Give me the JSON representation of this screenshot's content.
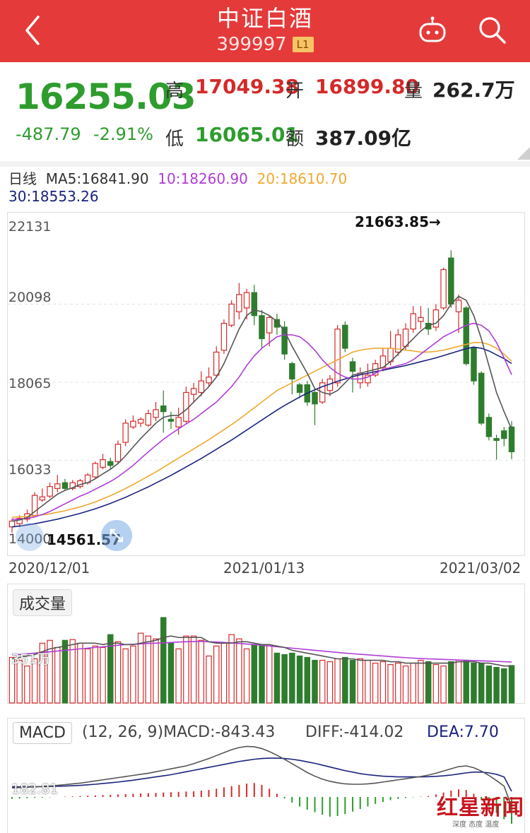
{
  "header": {
    "title": "中证白酒",
    "code": "399997",
    "level_badge": "L1"
  },
  "quote": {
    "price": "16255.03",
    "change": "-487.79",
    "change_pct": "-2.91%",
    "high_label": "高",
    "high": "17049.38",
    "open_label": "开",
    "open": "16899.80",
    "volume_label": "量",
    "volume": "262.7万",
    "low_label": "低",
    "low": "16065.01",
    "amount_label": "额",
    "amount": "387.09亿"
  },
  "ma_legend": {
    "period": "日线",
    "ma5": "MA5:16841.90",
    "ma10": "10:18260.90",
    "ma20": "20:18610.70",
    "ma30": "30:18553.26"
  },
  "colors": {
    "header_bg": "#e53a3a",
    "up": "#d42a2a",
    "down": "#2e7d2e",
    "ma5": "#555555",
    "ma10": "#b03cd8",
    "ma20": "#f0a830",
    "ma30": "#1a237e"
  },
  "icons": {
    "back": "chevron-left-icon",
    "robot": "robot-icon",
    "search": "search-icon",
    "expand": "expand-icon"
  },
  "chart_data": [
    {
      "type": "candlestick",
      "y_tick_labels": [
        "22131",
        "20098",
        "18065",
        "16033",
        "14000"
      ],
      "ylim": [
        14000,
        22131
      ],
      "x_tick_labels": [
        "2020/12/01",
        "2021/01/13",
        "2021/03/02"
      ],
      "annotations": {
        "max_label": "21663.85→",
        "min_label": "14561.57"
      },
      "candles": [
        {
          "o": 14300,
          "c": 14450,
          "h": 14520,
          "l": 14150
        },
        {
          "o": 14380,
          "c": 14520,
          "h": 14600,
          "l": 14300
        },
        {
          "o": 14500,
          "c": 14640,
          "h": 14750,
          "l": 14430
        },
        {
          "o": 14600,
          "c": 15120,
          "h": 15200,
          "l": 14560
        },
        {
          "o": 15000,
          "c": 15080,
          "h": 15300,
          "l": 14950
        },
        {
          "o": 15100,
          "c": 15350,
          "h": 15450,
          "l": 15050
        },
        {
          "o": 15300,
          "c": 15420,
          "h": 15650,
          "l": 15200
        },
        {
          "o": 15450,
          "c": 15300,
          "h": 15550,
          "l": 15250
        },
        {
          "o": 15300,
          "c": 15450,
          "h": 15520,
          "l": 15250
        },
        {
          "o": 15350,
          "c": 15500,
          "h": 15550,
          "l": 15300
        },
        {
          "o": 15450,
          "c": 15650,
          "h": 15700,
          "l": 15400
        },
        {
          "o": 15600,
          "c": 15950,
          "h": 16000,
          "l": 15550
        },
        {
          "o": 15850,
          "c": 16050,
          "h": 16200,
          "l": 15800
        },
        {
          "o": 16000,
          "c": 15900,
          "h": 16100,
          "l": 15800
        },
        {
          "o": 16000,
          "c": 16450,
          "h": 16550,
          "l": 15950
        },
        {
          "o": 16500,
          "c": 17000,
          "h": 17100,
          "l": 16400
        },
        {
          "o": 16900,
          "c": 17050,
          "h": 17200,
          "l": 16850
        },
        {
          "o": 17000,
          "c": 17100,
          "h": 17150,
          "l": 16900
        },
        {
          "o": 16950,
          "c": 17250,
          "h": 17350,
          "l": 16900
        },
        {
          "o": 17150,
          "c": 17350,
          "h": 17550,
          "l": 17050
        },
        {
          "o": 17450,
          "c": 17300,
          "h": 17850,
          "l": 16750
        },
        {
          "o": 17100,
          "c": 17050,
          "h": 17300,
          "l": 16850
        },
        {
          "o": 16900,
          "c": 17150,
          "h": 17400,
          "l": 16700
        },
        {
          "o": 17050,
          "c": 17800,
          "h": 17950,
          "l": 17000
        },
        {
          "o": 17750,
          "c": 17900,
          "h": 18050,
          "l": 17550
        },
        {
          "o": 17800,
          "c": 18100,
          "h": 18350,
          "l": 17700
        },
        {
          "o": 18050,
          "c": 18200,
          "h": 18450,
          "l": 17950
        },
        {
          "o": 18250,
          "c": 18850,
          "h": 19000,
          "l": 18200
        },
        {
          "o": 18900,
          "c": 19600,
          "h": 19700,
          "l": 18800
        },
        {
          "o": 19550,
          "c": 20100,
          "h": 20200,
          "l": 19500
        },
        {
          "o": 19900,
          "c": 20350,
          "h": 20650,
          "l": 19700
        },
        {
          "o": 20000,
          "c": 20400,
          "h": 20500,
          "l": 19700
        },
        {
          "o": 20400,
          "c": 19800,
          "h": 20600,
          "l": 19550
        },
        {
          "o": 19800,
          "c": 19200,
          "h": 19950,
          "l": 18950
        },
        {
          "o": 19350,
          "c": 19750,
          "h": 19800,
          "l": 19000
        },
        {
          "o": 19700,
          "c": 19500,
          "h": 19850,
          "l": 19300
        },
        {
          "o": 19500,
          "c": 18800,
          "h": 19650,
          "l": 18650
        },
        {
          "o": 18550,
          "c": 18150,
          "h": 18600,
          "l": 17750
        },
        {
          "o": 18000,
          "c": 17800,
          "h": 18050,
          "l": 17650
        },
        {
          "o": 18000,
          "c": 17550,
          "h": 18100,
          "l": 17450
        },
        {
          "o": 17800,
          "c": 17500,
          "h": 17850,
          "l": 16950
        },
        {
          "o": 17550,
          "c": 18050,
          "h": 18150,
          "l": 17500
        },
        {
          "o": 17850,
          "c": 18150,
          "h": 18250,
          "l": 17700
        },
        {
          "o": 18050,
          "c": 19450,
          "h": 19550,
          "l": 17950
        },
        {
          "o": 19550,
          "c": 18950,
          "h": 19650,
          "l": 18850
        },
        {
          "o": 18600,
          "c": 18350,
          "h": 18700,
          "l": 17800
        },
        {
          "o": 18050,
          "c": 18300,
          "h": 18450,
          "l": 17900
        },
        {
          "o": 18050,
          "c": 18250,
          "h": 18550,
          "l": 17950
        },
        {
          "o": 18250,
          "c": 18550,
          "h": 18650,
          "l": 18200
        },
        {
          "o": 18450,
          "c": 18750,
          "h": 18950,
          "l": 18350
        },
        {
          "o": 18600,
          "c": 18950,
          "h": 19400,
          "l": 18500
        },
        {
          "o": 18850,
          "c": 19300,
          "h": 19450,
          "l": 18750
        },
        {
          "o": 19000,
          "c": 19450,
          "h": 19600,
          "l": 18900
        },
        {
          "o": 19450,
          "c": 19850,
          "h": 20050,
          "l": 19350
        },
        {
          "o": 19650,
          "c": 19750,
          "h": 20050,
          "l": 19450
        },
        {
          "o": 19600,
          "c": 19450,
          "h": 20000,
          "l": 19300
        },
        {
          "o": 19500,
          "c": 19950,
          "h": 20100,
          "l": 19400
        },
        {
          "o": 20000,
          "c": 21000,
          "h": 21050,
          "l": 19950
        },
        {
          "o": 21300,
          "c": 20100,
          "h": 21500,
          "l": 20000
        },
        {
          "o": 19900,
          "c": 20200,
          "h": 20350,
          "l": 19350
        },
        {
          "o": 20000,
          "c": 18550,
          "h": 20050,
          "l": 18500
        },
        {
          "o": 18950,
          "c": 18100,
          "h": 19000,
          "l": 18000
        },
        {
          "o": 18300,
          "c": 17000,
          "h": 18350,
          "l": 16950
        },
        {
          "o": 17150,
          "c": 16650,
          "h": 17250,
          "l": 16550
        },
        {
          "o": 16600,
          "c": 16550,
          "h": 16700,
          "l": 16050
        },
        {
          "o": 16800,
          "c": 16600,
          "h": 16900,
          "l": 16400
        },
        {
          "o": 16900,
          "c": 16255,
          "h": 17049,
          "l": 16065
        }
      ],
      "ma5": [
        14450,
        14480,
        14540,
        14700,
        14850,
        15000,
        15150,
        15250,
        15320,
        15400,
        15450,
        15550,
        15680,
        15800,
        15950,
        16150,
        16380,
        16600,
        16800,
        17000,
        17150,
        17200,
        17200,
        17350,
        17550,
        17750,
        17950,
        18200,
        18550,
        19000,
        19450,
        19800,
        19950,
        19900,
        19800,
        19650,
        19400,
        19000,
        18650,
        18300,
        17900,
        17800,
        17750,
        17850,
        18050,
        18250,
        18300,
        18350,
        18400,
        18450,
        18600,
        18800,
        19000,
        19200,
        19400,
        19550,
        19600,
        19800,
        20100,
        20300,
        20200,
        19800,
        19200,
        18500,
        17800,
        17300,
        16840
      ],
      "ma10": [
        14500,
        14500,
        14520,
        14560,
        14620,
        14700,
        14800,
        14900,
        15000,
        15100,
        15180,
        15280,
        15380,
        15480,
        15600,
        15750,
        15900,
        16080,
        16250,
        16420,
        16580,
        16720,
        16850,
        16980,
        17100,
        17250,
        17400,
        17550,
        17750,
        17950,
        18200,
        18500,
        18750,
        18950,
        19100,
        19250,
        19300,
        19300,
        19250,
        19100,
        18900,
        18650,
        18450,
        18300,
        18200,
        18150,
        18150,
        18200,
        18300,
        18400,
        18450,
        18500,
        18550,
        18650,
        18800,
        18950,
        19100,
        19250,
        19350,
        19450,
        19550,
        19600,
        19550,
        19400,
        19100,
        18700,
        18261
      ],
      "ma20": [
        14550,
        14560,
        14570,
        14590,
        14610,
        14640,
        14680,
        14720,
        14770,
        14820,
        14880,
        14950,
        15030,
        15110,
        15200,
        15300,
        15400,
        15510,
        15620,
        15730,
        15850,
        15970,
        16090,
        16210,
        16330,
        16450,
        16570,
        16700,
        16830,
        16960,
        17100,
        17250,
        17400,
        17550,
        17700,
        17850,
        17950,
        18050,
        18150,
        18250,
        18350,
        18450,
        18550,
        18650,
        18750,
        18850,
        18900,
        18930,
        18950,
        18950,
        18950,
        18930,
        18900,
        18880,
        18850,
        18850,
        18870,
        18900,
        18950,
        19000,
        19050,
        19100,
        19100,
        19050,
        18950,
        18800,
        18611
      ],
      "ma30": [
        14300,
        14320,
        14350,
        14380,
        14420,
        14460,
        14500,
        14550,
        14600,
        14650,
        14710,
        14770,
        14840,
        14910,
        14990,
        15070,
        15160,
        15250,
        15340,
        15440,
        15540,
        15640,
        15750,
        15860,
        15970,
        16080,
        16200,
        16320,
        16440,
        16560,
        16690,
        16820,
        16950,
        17080,
        17210,
        17340,
        17460,
        17570,
        17680,
        17780,
        17870,
        17950,
        18020,
        18090,
        18150,
        18210,
        18260,
        18300,
        18340,
        18380,
        18420,
        18460,
        18500,
        18550,
        18600,
        18650,
        18700,
        18760,
        18820,
        18880,
        18940,
        18980,
        18950,
        18880,
        18780,
        18680,
        18553
      ]
    },
    {
      "type": "bar",
      "title": "成交量",
      "y_tick_labels": [
        "351万"
      ],
      "volumes": [
        320,
        300,
        260,
        310,
        420,
        440,
        390,
        440,
        445,
        420,
        380,
        400,
        390,
        480,
        430,
        380,
        400,
        490,
        470,
        450,
        600,
        420,
        380,
        470,
        470,
        440,
        330,
        400,
        420,
        480,
        450,
        380,
        410,
        400,
        400,
        350,
        340,
        350,
        330,
        320,
        300,
        300,
        290,
        310,
        320,
        300,
        310,
        300,
        280,
        290,
        270,
        280,
        260,
        280,
        300,
        290,
        270,
        260,
        290,
        300,
        300,
        280,
        280,
        260,
        250,
        240,
        263
      ],
      "vol_ma5": [
        310,
        320,
        330,
        340,
        360,
        380,
        390,
        400,
        410,
        420,
        420,
        420,
        410,
        420,
        420,
        410,
        410,
        420,
        430,
        440,
        460,
        470,
        460,
        460,
        460,
        460,
        430,
        420,
        420,
        420,
        430,
        430,
        420,
        410,
        410,
        400,
        390,
        370,
        360,
        350,
        340,
        330,
        320,
        310,
        310,
        310,
        300,
        300,
        300,
        300,
        290,
        290,
        280,
        280,
        280,
        280,
        280,
        280,
        280,
        290,
        290,
        290,
        280,
        280,
        270,
        260,
        260
      ],
      "vol_ma10": [
        340,
        340,
        345,
        350,
        355,
        360,
        365,
        370,
        375,
        380,
        385,
        390,
        395,
        400,
        405,
        410,
        412,
        415,
        418,
        420,
        422,
        425,
        428,
        430,
        432,
        432,
        430,
        428,
        425,
        422,
        418,
        414,
        410,
        405,
        400,
        395,
        390,
        385,
        380,
        375,
        370,
        365,
        360,
        355,
        350,
        346,
        342,
        338,
        334,
        330,
        326,
        322,
        318,
        315,
        312,
        310,
        308,
        306,
        304,
        302,
        300,
        298,
        296,
        294,
        292,
        290,
        288
      ]
    },
    {
      "type": "bar",
      "title": "MACD",
      "params": "(12, 26, 9)",
      "macd_text": "MACD:-843.43",
      "diff_text": "DIFF:-414.02",
      "dea_text": "DEA:7.70",
      "y_tick_labels": [
        "182.81"
      ],
      "hist": [
        -60,
        -50,
        -40,
        -30,
        -20,
        -10,
        0,
        10,
        20,
        30,
        40,
        50,
        60,
        70,
        80,
        90,
        100,
        110,
        120,
        130,
        140,
        150,
        160,
        170,
        180,
        200,
        220,
        260,
        300,
        340,
        380,
        420,
        440,
        380,
        260,
        100,
        -50,
        -180,
        -300,
        -400,
        -480,
        -560,
        -620,
        -600,
        -540,
        -460,
        -380,
        -300,
        -220,
        -160,
        -100,
        -60,
        -30,
        -10,
        10,
        30,
        80,
        140,
        200,
        240,
        220,
        100,
        -100,
        -300,
        -500,
        -700,
        -843
      ],
      "diff": [
        100,
        110,
        120,
        130,
        140,
        150,
        170,
        190,
        210,
        230,
        260,
        290,
        320,
        350,
        380,
        410,
        440,
        470,
        500,
        540,
        580,
        620,
        660,
        700,
        760,
        830,
        900,
        980,
        1060,
        1140,
        1200,
        1230,
        1220,
        1170,
        1090,
        990,
        880,
        760,
        640,
        520,
        420,
        340,
        280,
        240,
        210,
        200,
        200,
        210,
        230,
        260,
        290,
        320,
        350,
        380,
        410,
        450,
        500,
        560,
        620,
        680,
        700,
        650,
        560,
        440,
        300,
        150,
        -414
      ],
      "dea": [
        130,
        130,
        130,
        132,
        135,
        140,
        145,
        150,
        160,
        170,
        185,
        200,
        220,
        240,
        260,
        285,
        310,
        340,
        370,
        400,
        430,
        460,
        500,
        540,
        580,
        620,
        660,
        700,
        740,
        780,
        820,
        850,
        880,
        900,
        910,
        910,
        900,
        880,
        850,
        810,
        770,
        720,
        670,
        620,
        570,
        530,
        490,
        460,
        440,
        420,
        410,
        400,
        400,
        400,
        400,
        405,
        415,
        430,
        450,
        480,
        510,
        530,
        530,
        510,
        470,
        400,
        8
      ]
    }
  ],
  "watermark": {
    "brand": "红星新闻",
    "tagline": "深度 态度 温度"
  }
}
